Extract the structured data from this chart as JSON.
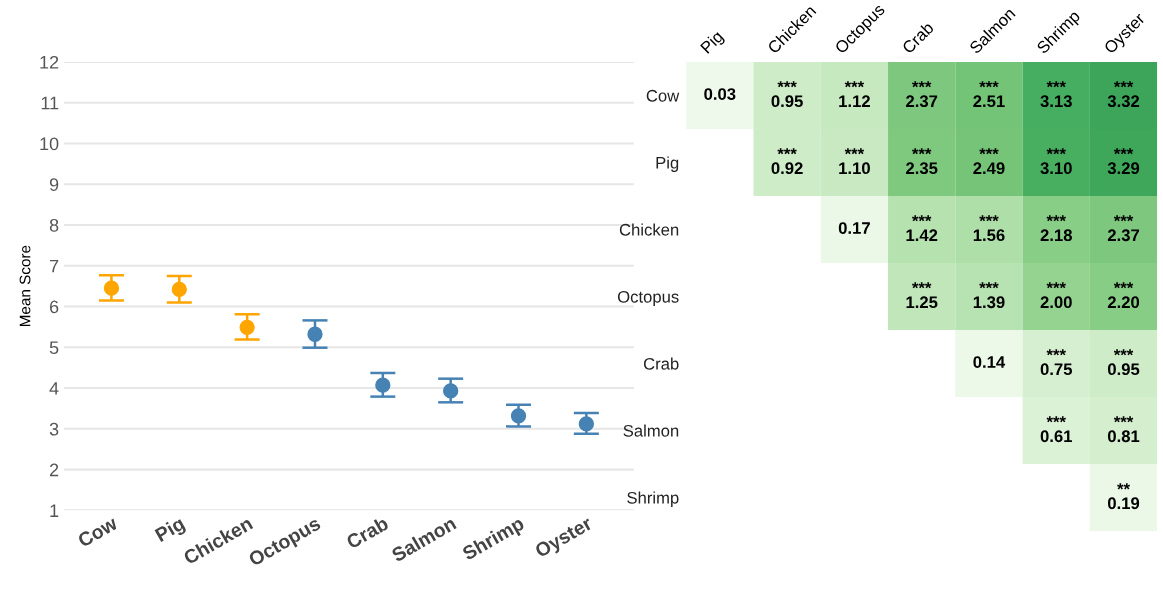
{
  "chart_data": [
    {
      "type": "scatter",
      "ylabel": "Mean Score",
      "categories": [
        "Cow",
        "Pig",
        "Chicken",
        "Octopus",
        "Crab",
        "Salmon",
        "Shrimp",
        "Oyster"
      ],
      "values": [
        6.45,
        6.42,
        5.49,
        5.32,
        4.07,
        3.93,
        3.32,
        3.12
      ],
      "errors": [
        [
          6.15,
          6.77
        ],
        [
          6.1,
          6.75
        ],
        [
          5.19,
          5.81
        ],
        [
          4.99,
          5.66
        ],
        [
          3.79,
          4.37
        ],
        [
          3.65,
          4.23
        ],
        [
          3.06,
          3.59
        ],
        [
          2.88,
          3.39
        ]
      ],
      "colors": [
        "#ffa500",
        "#ffa500",
        "#ffa500",
        "#4682b4",
        "#4682b4",
        "#4682b4",
        "#4682b4",
        "#4682b4"
      ],
      "ylim": [
        1,
        12
      ],
      "yticks": [
        1,
        2,
        3,
        4,
        5,
        6,
        7,
        8,
        9,
        10,
        11,
        12
      ],
      "grid": "y",
      "marker": "circle"
    },
    {
      "type": "heatmap",
      "categories": [
        "Pig",
        "Chicken",
        "Octopus",
        "Crab",
        "Salmon",
        "Shrimp",
        "Oyster"
      ],
      "y_categories": [
        "Cow",
        "Pig",
        "Chicken",
        "Octopus",
        "Crab",
        "Salmon",
        "Shrimp"
      ],
      "cells": [
        [
          0.03,
          0.95,
          1.12,
          2.37,
          2.51,
          3.13,
          3.32
        ],
        [
          null,
          0.92,
          1.1,
          2.35,
          2.49,
          3.1,
          3.29
        ],
        [
          null,
          null,
          0.17,
          1.42,
          1.56,
          2.18,
          2.37
        ],
        [
          null,
          null,
          null,
          1.25,
          1.39,
          2.0,
          2.2
        ],
        [
          null,
          null,
          null,
          null,
          0.14,
          0.75,
          0.95
        ],
        [
          null,
          null,
          null,
          null,
          null,
          0.61,
          0.81
        ],
        [
          null,
          null,
          null,
          null,
          null,
          null,
          0.19
        ]
      ],
      "cell_labels": [
        [
          "0.03",
          "***\n0.95",
          "***\n1.12",
          "***\n2.37",
          "***\n2.51",
          "***\n3.13",
          "***\n3.32"
        ],
        [
          null,
          "***\n0.92",
          "***\n1.10",
          "***\n2.35",
          "***\n2.49",
          "***\n3.10",
          "***\n3.29"
        ],
        [
          null,
          null,
          "0.17",
          "***\n1.42",
          "***\n1.56",
          "***\n2.18",
          "***\n2.37"
        ],
        [
          null,
          null,
          null,
          "***\n1.25",
          "***\n1.39",
          "***\n2.00",
          "***\n2.20"
        ],
        [
          null,
          null,
          null,
          null,
          "0.14",
          "***\n0.75",
          "***\n0.95"
        ],
        [
          null,
          null,
          null,
          null,
          null,
          "***\n0.61",
          "***\n0.81"
        ],
        [
          null,
          null,
          null,
          null,
          null,
          null,
          "**\n0.19"
        ]
      ]
    }
  ]
}
